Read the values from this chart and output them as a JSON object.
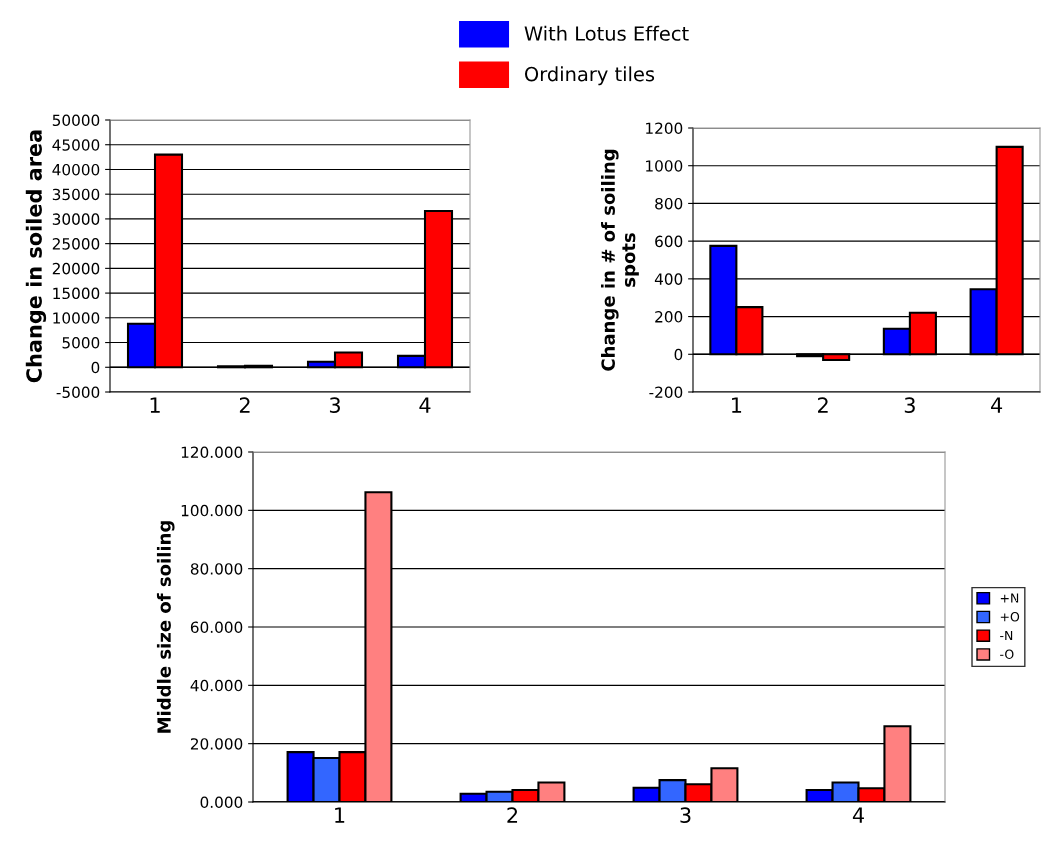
{
  "chart_data": [
    {
      "type": "bar",
      "ylabel": "Change in soiled area",
      "categories": [
        "1",
        "2",
        "3",
        "4"
      ],
      "ylim": [
        -5000,
        50000
      ],
      "yticks": [
        -5000,
        0,
        5000,
        10000,
        15000,
        20000,
        25000,
        30000,
        35000,
        40000,
        45000,
        50000
      ],
      "grid": "y",
      "legend": "top",
      "series": [
        {
          "name": "With Lotus Effect",
          "color": "#0000ff",
          "values": [
            8800,
            200,
            1100,
            2300
          ]
        },
        {
          "name": "Ordinary tiles",
          "color": "#ff0000",
          "values": [
            43000,
            300,
            3000,
            31600
          ]
        }
      ]
    },
    {
      "type": "bar",
      "ylabel": "Change in # of soiling\nspots",
      "categories": [
        "1",
        "2",
        "3",
        "4"
      ],
      "ylim": [
        -200,
        1200
      ],
      "yticks": [
        -200,
        0,
        200,
        400,
        600,
        800,
        1000,
        1200
      ],
      "grid": "y",
      "series": [
        {
          "color": "#0000ff",
          "values": [
            575,
            -10,
            135,
            345
          ]
        },
        {
          "color": "#ff0000",
          "values": [
            250,
            -30,
            220,
            1100
          ]
        }
      ]
    },
    {
      "type": "bar",
      "ylabel": "Middle size of soiling",
      "categories": [
        "1",
        "2",
        "3",
        "4"
      ],
      "ylim": [
        0,
        120
      ],
      "yticks": [
        {
          "value": 0,
          "label": "0.000"
        },
        {
          "value": 20,
          "label": "20.000"
        },
        {
          "value": 40,
          "label": "40.000"
        },
        {
          "value": 60,
          "label": "60.000"
        },
        {
          "value": 80,
          "label": "80.000"
        },
        {
          "value": 100,
          "label": "100.000"
        },
        {
          "value": 120,
          "label": "120.000"
        }
      ],
      "grid": "y",
      "legend": "right",
      "series": [
        {
          "name": "+N",
          "color": "#0000ff",
          "values": [
            17.1,
            2.8,
            4.9,
            4.1
          ]
        },
        {
          "name": "+O",
          "color": "#3366ff",
          "values": [
            15.1,
            3.5,
            7.5,
            6.7
          ]
        },
        {
          "name": "-N",
          "color": "#ff0000",
          "values": [
            17.1,
            4.1,
            6.1,
            4.7
          ]
        },
        {
          "name": "-O",
          "color": "#ff8080",
          "values": [
            106.2,
            6.7,
            11.6,
            26.0
          ]
        }
      ]
    }
  ]
}
